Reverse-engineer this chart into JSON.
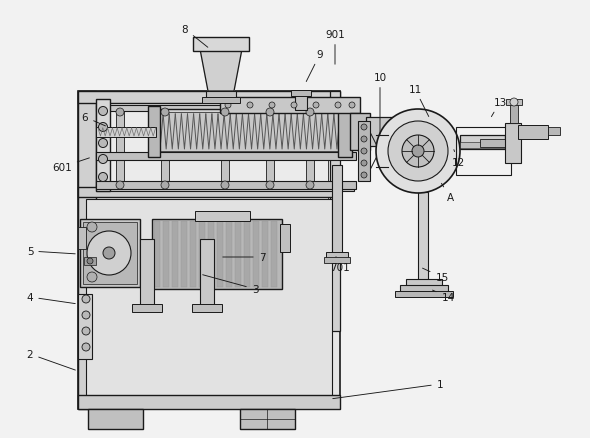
{
  "bg_color": "#f2f2f2",
  "line_color": "#1a1a1a",
  "annotations": [
    [
      "1",
      [
        440,
        385
      ],
      [
        330,
        400
      ]
    ],
    [
      "2",
      [
        30,
        355
      ],
      [
        78,
        372
      ]
    ],
    [
      "3",
      [
        255,
        290
      ],
      [
        200,
        275
      ]
    ],
    [
      "4",
      [
        30,
        298
      ],
      [
        78,
        305
      ]
    ],
    [
      "5",
      [
        30,
        252
      ],
      [
        78,
        255
      ]
    ],
    [
      "6",
      [
        85,
        118
      ],
      [
        108,
        128
      ]
    ],
    [
      "7",
      [
        262,
        258
      ],
      [
        220,
        258
      ]
    ],
    [
      "8",
      [
        185,
        30
      ],
      [
        210,
        50
      ]
    ],
    [
      "9",
      [
        320,
        55
      ],
      [
        305,
        85
      ]
    ],
    [
      "10",
      [
        380,
        78
      ],
      [
        380,
        138
      ]
    ],
    [
      "11",
      [
        415,
        90
      ],
      [
        430,
        120
      ]
    ],
    [
      "12",
      [
        458,
        163
      ],
      [
        453,
        148
      ]
    ],
    [
      "13",
      [
        500,
        103
      ],
      [
        490,
        120
      ]
    ],
    [
      "14",
      [
        448,
        298
      ],
      [
        430,
        290
      ]
    ],
    [
      "15",
      [
        442,
        278
      ],
      [
        420,
        268
      ]
    ],
    [
      "601",
      [
        62,
        168
      ],
      [
        92,
        158
      ]
    ],
    [
      "701",
      [
        340,
        268
      ],
      [
        335,
        255
      ]
    ],
    [
      "901",
      [
        335,
        35
      ],
      [
        335,
        68
      ]
    ],
    [
      "A",
      [
        450,
        198
      ],
      [
        440,
        182
      ]
    ]
  ]
}
